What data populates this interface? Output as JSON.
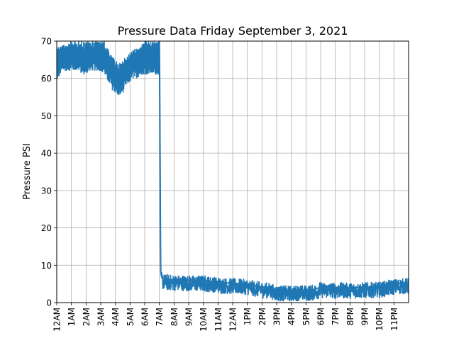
{
  "chart_data": {
    "type": "line",
    "title": "Pressure Data Friday September 3, 2021",
    "xlabel": "",
    "ylabel": "Pressure PSI",
    "ylim": [
      0,
      70
    ],
    "xlim_hours": [
      0,
      24
    ],
    "yticks": [
      0,
      10,
      20,
      30,
      40,
      50,
      60,
      70
    ],
    "xticks": [
      "12AM",
      "1AM",
      "2AM",
      "3AM",
      "4AM",
      "5AM",
      "6AM",
      "7AM",
      "8AM",
      "9AM",
      "10AM",
      "11AM",
      "12AM",
      "1PM",
      "2PM",
      "3PM",
      "4PM",
      "5PM",
      "6PM",
      "7PM",
      "8PM",
      "9PM",
      "10PM",
      "11PM"
    ],
    "grid": true,
    "line_color": "#1f77b4",
    "series": [
      {
        "name": "",
        "band_hours": [
          0.0,
          0.25,
          0.5,
          0.75,
          1.0,
          1.25,
          1.5,
          1.75,
          2.0,
          2.25,
          2.5,
          2.75,
          3.0,
          3.25,
          3.5,
          3.75,
          4.0,
          4.25,
          4.5,
          4.75,
          5.0,
          5.25,
          5.5,
          5.75,
          6.0,
          6.25,
          6.5,
          6.75,
          7.0
        ],
        "band_min": [
          59,
          61,
          62,
          62,
          62,
          62,
          62,
          61,
          61,
          62,
          62,
          62,
          62,
          61,
          59,
          57,
          56,
          55,
          56,
          58,
          59,
          60,
          60,
          61,
          61,
          61,
          61,
          61,
          61
        ],
        "band_max": [
          69,
          69,
          69,
          70,
          70,
          70,
          70,
          70,
          70,
          70,
          70,
          70,
          70,
          70,
          68,
          66,
          65,
          64,
          65,
          66,
          67,
          68,
          68,
          69,
          70,
          70,
          70,
          70,
          70
        ],
        "x": [
          7.0,
          7.02,
          7.04,
          7.06,
          7.08,
          7.1,
          7.15,
          7.2,
          7.3,
          7.5,
          8.0,
          9.0,
          10.0,
          10.5,
          11.0,
          11.5,
          12.0,
          12.5,
          13.0,
          13.5,
          14.0,
          14.5,
          15.0,
          16.0,
          16.5,
          17.0,
          17.5,
          18.0,
          19.0,
          20.0,
          21.0,
          22.0,
          22.5,
          23.0,
          23.5,
          23.99
        ],
        "y": [
          70,
          60,
          45,
          30,
          15,
          8,
          7,
          6.5,
          6.3,
          6.2,
          6.1,
          6.0,
          5.9,
          5.7,
          5.5,
          5.3,
          5.2,
          5.1,
          5.0,
          4.5,
          4.2,
          4.0,
          3.3,
          3.2,
          3.4,
          3.3,
          3.5,
          4.1,
          4.1,
          4.0,
          4.1,
          4.2,
          4.6,
          5.0,
          5.2,
          5.2
        ],
        "noise_after_7am": 2.2
      }
    ]
  }
}
